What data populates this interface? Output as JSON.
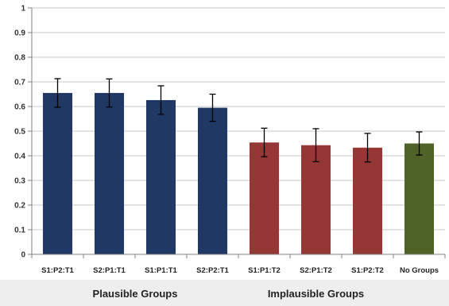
{
  "chart_data": {
    "type": "bar",
    "categories": [
      "S1:P2:T1",
      "S2:P1:T1",
      "S1:P1:T1",
      "S2:P2:T1",
      "S1:P1:T2",
      "S2:P1:T2",
      "S1:P2:T2",
      "No Groups"
    ],
    "values": [
      0.655,
      0.655,
      0.626,
      0.595,
      0.454,
      0.443,
      0.433,
      0.45
    ],
    "error": [
      0.058,
      0.057,
      0.058,
      0.055,
      0.058,
      0.067,
      0.058,
      0.047
    ],
    "bar_colors": [
      "#1f3864",
      "#1f3864",
      "#1f3864",
      "#1f3864",
      "#953735",
      "#953735",
      "#953735",
      "#4f6228"
    ],
    "yticks": [
      "0",
      "0.1",
      "0.2",
      "0.3",
      "0.4",
      "0.5",
      "0.6",
      "0.7",
      "0.8",
      "0.9",
      "1"
    ],
    "ylim": [
      0,
      1
    ],
    "grid": true,
    "groups": [
      {
        "label": "Plausible Groups",
        "span": [
          0,
          3
        ]
      },
      {
        "label": "Implausible Groups",
        "span": [
          4,
          6
        ]
      }
    ],
    "title": "",
    "xlabel": "",
    "ylabel": ""
  }
}
